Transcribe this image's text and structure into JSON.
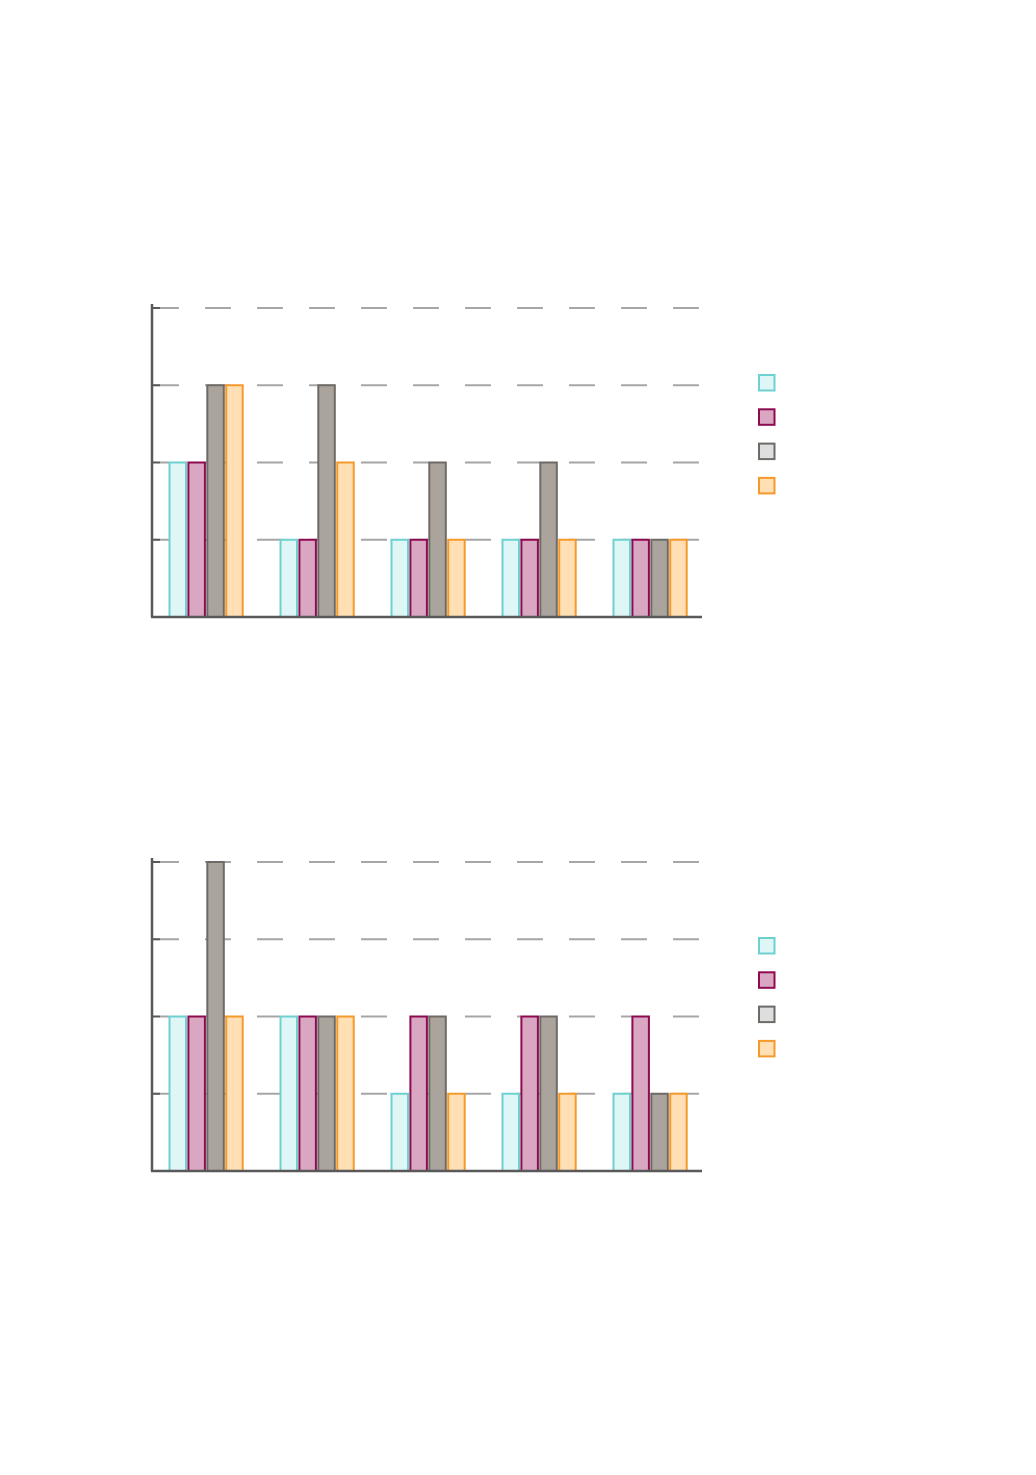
{
  "colors": {
    "background": "#ffffff",
    "axis": "#595959",
    "grid": "#a6a6a6"
  },
  "series_styles": [
    {
      "fill": "#dff6f6",
      "stroke": "#6fd0d0"
    },
    {
      "fill": "#d9a7c1",
      "stroke": "#8e0a50"
    },
    {
      "fill": "#aaa49d",
      "stroke": "#6e6a66"
    },
    {
      "fill": "#ffdfb3",
      "stroke": "#f59a2a"
    }
  ],
  "legend_swatch_fills": [
    "#dff6f6",
    "#d9a7c1",
    "#dedede",
    "#ffdfb3"
  ],
  "chart_data": [
    {
      "type": "bar",
      "ylim": [
        0,
        4
      ],
      "grid": true,
      "grid_style": "dashed",
      "legend_position": "right",
      "group_count": 5,
      "series": [
        {
          "values": [
            2,
            1,
            1,
            1,
            1
          ]
        },
        {
          "values": [
            2,
            1,
            1,
            1,
            1
          ]
        },
        {
          "values": [
            3,
            3,
            2,
            2,
            1
          ]
        },
        {
          "values": [
            3,
            2,
            1,
            1,
            1
          ]
        }
      ]
    },
    {
      "type": "bar",
      "ylim": [
        0,
        4
      ],
      "grid": true,
      "grid_style": "dashed",
      "legend_position": "right",
      "group_count": 5,
      "series": [
        {
          "values": [
            2,
            2,
            1,
            1,
            1
          ]
        },
        {
          "values": [
            2,
            2,
            2,
            2,
            2
          ]
        },
        {
          "values": [
            4,
            2,
            2,
            2,
            1
          ]
        },
        {
          "values": [
            2,
            2,
            1,
            1,
            1
          ]
        }
      ]
    }
  ]
}
